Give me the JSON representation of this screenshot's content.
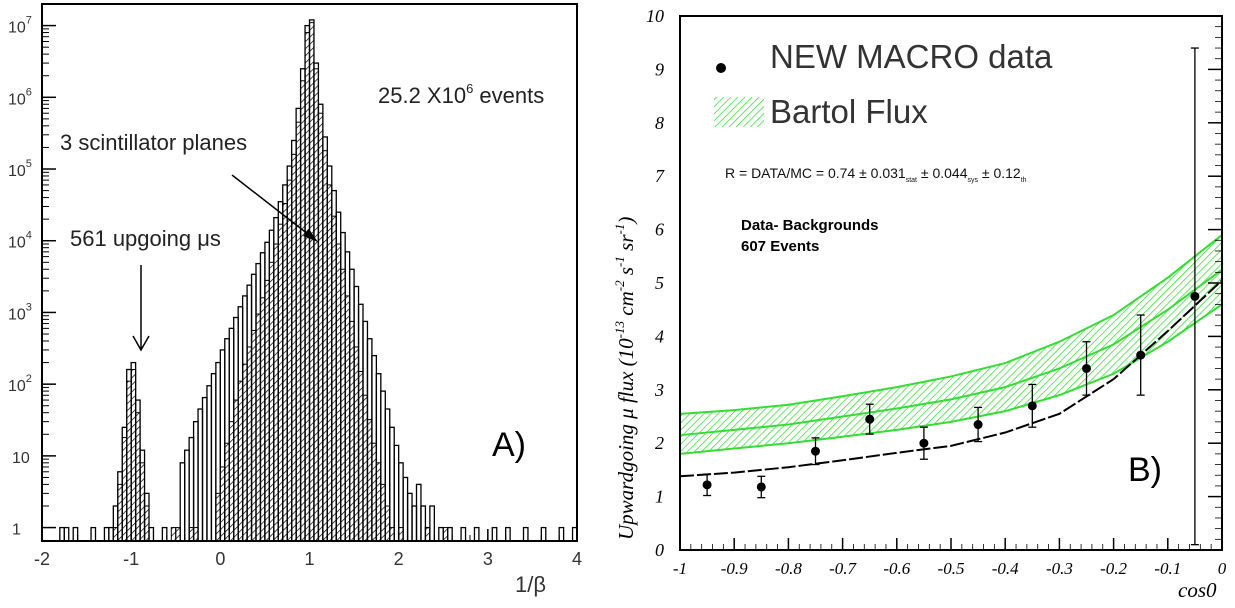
{
  "chart_data": [
    {
      "panel": "A)",
      "type": "histogram",
      "xlabel": "1/β",
      "x_ticks": [
        "-2",
        "-1",
        "0",
        "1",
        "2",
        "3",
        "4"
      ],
      "xlim": [
        -2,
        4
      ],
      "y_scale": "log",
      "ylim": [
        0.65,
        20000000
      ],
      "y_ticks": [
        {
          "value": 1,
          "base": "1",
          "exp": ""
        },
        {
          "value": 10,
          "base": "10",
          "exp": ""
        },
        {
          "value": 100,
          "base": "10",
          "exp": "2"
        },
        {
          "value": 1000,
          "base": "10",
          "exp": "3"
        },
        {
          "value": 10000,
          "base": "10",
          "exp": "4"
        },
        {
          "value": 100000,
          "base": "10",
          "exp": "5"
        },
        {
          "value": 1000000,
          "base": "10",
          "exp": "6"
        },
        {
          "value": 10000000,
          "base": "10",
          "exp": "7"
        }
      ],
      "annotations": {
        "events_base": "25.2 X10",
        "events_exp": "6",
        "events_suffix": " events",
        "planes": "3 scintillator planes",
        "upgoing": "561 upgoing μs",
        "panel_label": "A)"
      },
      "series": [
        {
          "style": "open",
          "bin_width": 0.05,
          "bins": [
            [
              -1.8,
              1
            ],
            [
              -1.75,
              1
            ],
            [
              -1.65,
              1
            ],
            [
              -1.45,
              1
            ],
            [
              -1.3,
              1
            ],
            [
              -1.25,
              1
            ],
            [
              -1.2,
              2
            ],
            [
              -1.15,
              6
            ],
            [
              -1.1,
              25
            ],
            [
              -1.05,
              160
            ],
            [
              -1.0,
              200
            ],
            [
              -0.95,
              60
            ],
            [
              -0.9,
              12
            ],
            [
              -0.85,
              3
            ],
            [
              -0.8,
              1
            ],
            [
              -0.65,
              1
            ],
            [
              -0.45,
              8
            ],
            [
              -0.4,
              12
            ],
            [
              -0.35,
              18
            ],
            [
              -0.3,
              30
            ],
            [
              -0.25,
              45
            ],
            [
              -0.2,
              65
            ],
            [
              -0.15,
              95
            ],
            [
              -0.1,
              140
            ],
            [
              -0.05,
              200
            ],
            [
              0.0,
              300
            ],
            [
              0.05,
              430
            ],
            [
              0.1,
              600
            ],
            [
              0.15,
              850
            ],
            [
              0.2,
              1200
            ],
            [
              0.25,
              1700
            ],
            [
              0.3,
              2400
            ],
            [
              0.35,
              3400
            ],
            [
              0.4,
              4800
            ],
            [
              0.45,
              6800
            ],
            [
              0.5,
              9500
            ],
            [
              0.55,
              14000
            ],
            [
              0.6,
              21000
            ],
            [
              0.65,
              35000
            ],
            [
              0.7,
              60000
            ],
            [
              0.75,
              110000
            ],
            [
              0.8,
              250000
            ],
            [
              0.85,
              700000
            ],
            [
              0.9,
              2500000
            ],
            [
              0.95,
              10000000
            ],
            [
              1.0,
              12000000
            ],
            [
              1.05,
              3000000
            ],
            [
              1.1,
              800000
            ],
            [
              1.15,
              280000
            ],
            [
              1.2,
              110000
            ],
            [
              1.25,
              50000
            ],
            [
              1.3,
              25000
            ],
            [
              1.35,
              13000
            ],
            [
              1.4,
              7000
            ],
            [
              1.45,
              4000
            ],
            [
              1.5,
              2300
            ],
            [
              1.55,
              1300
            ],
            [
              1.6,
              750
            ],
            [
              1.65,
              430
            ],
            [
              1.7,
              250
            ],
            [
              1.75,
              140
            ],
            [
              1.8,
              80
            ],
            [
              1.85,
              45
            ],
            [
              1.9,
              25
            ],
            [
              1.95,
              14
            ],
            [
              2.0,
              8
            ],
            [
              2.05,
              5
            ],
            [
              2.1,
              3
            ],
            [
              2.15,
              2
            ],
            [
              2.2,
              4
            ],
            [
              2.25,
              2
            ],
            [
              2.3,
              1
            ],
            [
              2.35,
              2
            ],
            [
              2.45,
              1
            ],
            [
              2.55,
              1
            ],
            [
              2.7,
              1
            ],
            [
              2.85,
              1
            ],
            [
              3.05,
              1
            ],
            [
              3.2,
              1
            ],
            [
              3.4,
              1
            ],
            [
              3.6,
              1
            ],
            [
              3.8,
              1
            ],
            [
              3.95,
              1
            ]
          ]
        },
        {
          "style": "hatched",
          "bin_width": 0.05,
          "bins": [
            [
              -1.2,
              1
            ],
            [
              -1.15,
              4
            ],
            [
              -1.1,
              18
            ],
            [
              -1.05,
              110
            ],
            [
              -1.0,
              160
            ],
            [
              -0.95,
              40
            ],
            [
              -0.9,
              8
            ],
            [
              -0.85,
              2
            ],
            [
              -0.55,
              1
            ],
            [
              -0.5,
              1
            ],
            [
              -0.35,
              1
            ],
            [
              -0.3,
              1
            ],
            [
              -0.05,
              3
            ],
            [
              0.0,
              7
            ],
            [
              0.05,
              15
            ],
            [
              0.1,
              30
            ],
            [
              0.15,
              60
            ],
            [
              0.2,
              110
            ],
            [
              0.25,
              190
            ],
            [
              0.3,
              330
            ],
            [
              0.35,
              560
            ],
            [
              0.4,
              950
            ],
            [
              0.45,
              1600
            ],
            [
              0.5,
              2800
            ],
            [
              0.55,
              5000
            ],
            [
              0.6,
              9000
            ],
            [
              0.65,
              17000
            ],
            [
              0.7,
              33000
            ],
            [
              0.75,
              70000
            ],
            [
              0.8,
              160000
            ],
            [
              0.85,
              450000
            ],
            [
              0.9,
              1700000
            ],
            [
              0.95,
              8000000
            ],
            [
              1.0,
              11000000
            ],
            [
              1.05,
              2500000
            ],
            [
              1.1,
              600000
            ],
            [
              1.15,
              180000
            ],
            [
              1.2,
              60000
            ],
            [
              1.25,
              22000
            ],
            [
              1.3,
              9000
            ],
            [
              1.35,
              4000
            ],
            [
              1.4,
              1700
            ],
            [
              1.45,
              750
            ],
            [
              1.5,
              330
            ],
            [
              1.55,
              150
            ],
            [
              1.6,
              70
            ],
            [
              1.65,
              32
            ],
            [
              1.7,
              15
            ],
            [
              1.75,
              8
            ],
            [
              1.8,
              4
            ],
            [
              1.85,
              2
            ],
            [
              1.9,
              1
            ],
            [
              2.0,
              1
            ],
            [
              2.3,
              1
            ],
            [
              2.5,
              1
            ]
          ]
        }
      ]
    },
    {
      "panel": "B)",
      "type": "scatter",
      "xlabel": "cos0",
      "ylabel": "Upwardgoing μ flux (10",
      "ylabel_exp1": "-13",
      "ylabel_mid": " cm",
      "ylabel_exp2": "-2",
      "ylabel_s": " s",
      "ylabel_exp3": "-1",
      "ylabel_sr": " sr",
      "ylabel_exp4": "-1",
      "ylabel_end": ")",
      "xlim": [
        -1,
        0
      ],
      "ylim": [
        0,
        10
      ],
      "x_ticks": [
        "-1",
        "-0.9",
        "-0.8",
        "-0.7",
        "-0.6",
        "-0.5",
        "-0.4",
        "-0.3",
        "-0.2",
        "-0.1",
        "0"
      ],
      "y_ticks": [
        "0",
        "1",
        "2",
        "3",
        "4",
        "5",
        "6",
        "7",
        "8",
        "9",
        "10"
      ],
      "legend": [
        "NEW MACRO data",
        "Bartol Flux"
      ],
      "ratio_text": {
        "prefix": "R = DATA/MC = 0.74 ± 0.031",
        "sub1": "stat",
        "mid1": " ± 0.044",
        "sub2": "sys",
        "mid2": " ±  0.12",
        "sub3": "th"
      },
      "box_text": [
        "Data- Backgrounds",
        "607 Events"
      ],
      "panel_label": "B)",
      "colors": {
        "band": "#33dd33",
        "data": "#000000"
      },
      "series": [
        {
          "name": "NEW MACRO data",
          "x": [
            -0.95,
            -0.85,
            -0.75,
            -0.65,
            -0.55,
            -0.45,
            -0.35,
            -0.25,
            -0.15,
            -0.05
          ],
          "y": [
            1.22,
            1.18,
            1.85,
            2.45,
            2.0,
            2.35,
            2.7,
            3.4,
            3.65,
            4.75
          ],
          "err": [
            0.2,
            0.2,
            0.25,
            0.28,
            0.3,
            0.32,
            0.4,
            0.5,
            0.75,
            4.65
          ]
        },
        {
          "name": "Bartol Flux",
          "x": [
            -1,
            -0.9,
            -0.8,
            -0.7,
            -0.6,
            -0.5,
            -0.4,
            -0.3,
            -0.2,
            -0.1,
            0
          ],
          "y_low": [
            1.8,
            1.9,
            2.0,
            2.12,
            2.25,
            2.4,
            2.6,
            2.9,
            3.3,
            3.9,
            4.6
          ],
          "y_mid": [
            2.15,
            2.25,
            2.35,
            2.5,
            2.65,
            2.82,
            3.05,
            3.4,
            3.85,
            4.5,
            5.25
          ],
          "y_high": [
            2.55,
            2.62,
            2.72,
            2.88,
            3.05,
            3.25,
            3.5,
            3.9,
            4.4,
            5.1,
            5.9
          ]
        },
        {
          "name": "MC",
          "x": [
            -1,
            -0.9,
            -0.8,
            -0.7,
            -0.6,
            -0.5,
            -0.4,
            -0.3,
            -0.2,
            -0.1,
            0
          ],
          "y": [
            1.38,
            1.45,
            1.55,
            1.68,
            1.82,
            1.95,
            2.2,
            2.55,
            3.2,
            4.1,
            5.05
          ]
        }
      ]
    }
  ]
}
